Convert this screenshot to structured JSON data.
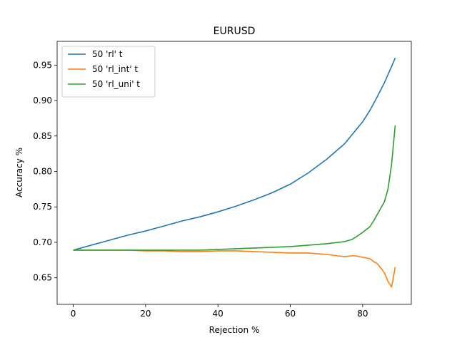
{
  "chart_data": {
    "type": "line",
    "title": "EURUSD",
    "xlabel": "Rejection %",
    "ylabel": "Accuracy %",
    "xlim": [
      -4.45,
      93.45
    ],
    "ylim": [
      0.6125,
      0.9835
    ],
    "xticks": [
      0,
      20,
      40,
      60,
      80
    ],
    "xtick_labels": [
      "0",
      "20",
      "40",
      "60",
      "80"
    ],
    "yticks": [
      0.65,
      0.7,
      0.75,
      0.8,
      0.85,
      0.9,
      0.95
    ],
    "ytick_labels": [
      "0.65",
      "0.70",
      "0.75",
      "0.80",
      "0.85",
      "0.90",
      "0.95"
    ],
    "grid": false,
    "legend_position": "top-left",
    "series": [
      {
        "name": "50 'rl' t",
        "color": "#1f77b4",
        "x": [
          0,
          5,
          10,
          15,
          20,
          25,
          30,
          35,
          40,
          45,
          50,
          55,
          60,
          65,
          70,
          75,
          80,
          82,
          84,
          86,
          88,
          89
        ],
        "y": [
          0.689,
          0.696,
          0.703,
          0.71,
          0.716,
          0.723,
          0.73,
          0.736,
          0.743,
          0.751,
          0.76,
          0.77,
          0.782,
          0.798,
          0.817,
          0.839,
          0.87,
          0.886,
          0.905,
          0.925,
          0.948,
          0.96
        ]
      },
      {
        "name": "50 'rl_int' t",
        "color": "#ff7f0e",
        "x": [
          0,
          5,
          10,
          15,
          20,
          25,
          30,
          35,
          40,
          45,
          50,
          55,
          60,
          65,
          70,
          73,
          75,
          77,
          78,
          80,
          82,
          83,
          84,
          85,
          86,
          87,
          88,
          89
        ],
        "y": [
          0.689,
          0.689,
          0.689,
          0.689,
          0.688,
          0.688,
          0.687,
          0.687,
          0.688,
          0.688,
          0.687,
          0.686,
          0.685,
          0.685,
          0.683,
          0.681,
          0.68,
          0.681,
          0.681,
          0.679,
          0.677,
          0.673,
          0.67,
          0.664,
          0.657,
          0.645,
          0.637,
          0.665
        ]
      },
      {
        "name": "50 'rl_uni' t",
        "color": "#2ca02c",
        "x": [
          0,
          5,
          10,
          15,
          20,
          25,
          30,
          35,
          40,
          45,
          50,
          55,
          60,
          65,
          70,
          75,
          77,
          78,
          80,
          82,
          83,
          84,
          85,
          86,
          87,
          88,
          89
        ],
        "y": [
          0.689,
          0.689,
          0.689,
          0.689,
          0.689,
          0.689,
          0.689,
          0.689,
          0.69,
          0.691,
          0.692,
          0.693,
          0.694,
          0.696,
          0.698,
          0.701,
          0.704,
          0.707,
          0.714,
          0.722,
          0.73,
          0.739,
          0.748,
          0.757,
          0.775,
          0.81,
          0.865
        ]
      }
    ]
  }
}
